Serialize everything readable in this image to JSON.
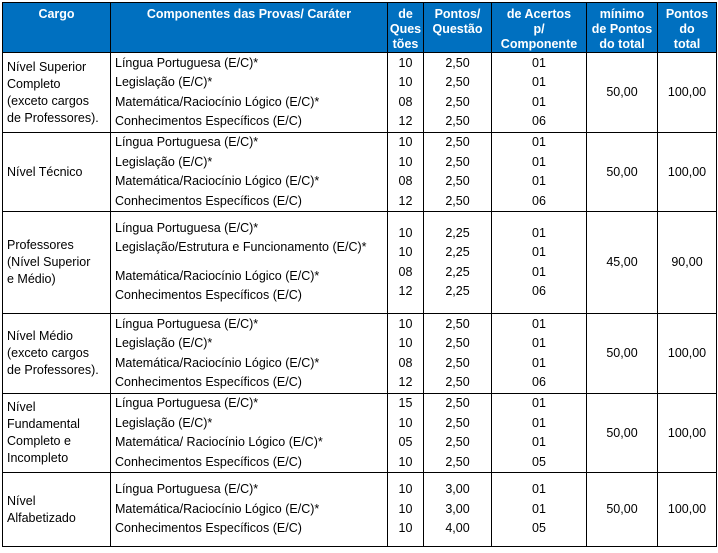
{
  "headers": {
    "cargo": "Cargo",
    "componentes": "Componentes das Provas/ Caráter",
    "questoes_lines": [
      "de",
      "Ques",
      "tões"
    ],
    "pontos_questao_lines": [
      "Pontos/",
      "Questão"
    ],
    "acertos_lines": [
      "de Acertos",
      "p/",
      "Componente"
    ],
    "minimo_lines": [
      "mínimo",
      "de Pontos",
      "do total"
    ],
    "pontos_total_lines": [
      "Pontos",
      "do",
      "total"
    ]
  },
  "groups": [
    {
      "cargo_lines": [
        "Nível Superior",
        "Completo",
        "(exceto cargos",
        "de Professores)."
      ],
      "componentes": [
        "Língua Portuguesa (E/C)*",
        "Legislação (E/C)*",
        "Matemática/Raciocínio Lógico (E/C)*",
        "Conhecimentos Específicos (E/C)"
      ],
      "questoes": [
        "10",
        "10",
        "08",
        "12"
      ],
      "pontos": [
        "2,50",
        "2,50",
        "2,50",
        "2,50"
      ],
      "acertos": [
        "01",
        "01",
        "01",
        "06"
      ],
      "minimo": "50,00",
      "total": "100,00"
    },
    {
      "cargo_lines": [
        "Nível Técnico"
      ],
      "componentes": [
        "Língua Portuguesa (E/C)*",
        "Legislação (E/C)*",
        "Matemática/Raciocínio Lógico (E/C)*",
        "Conhecimentos Específicos (E/C)"
      ],
      "questoes": [
        "10",
        "10",
        "08",
        "12"
      ],
      "pontos": [
        "2,50",
        "2,50",
        "2,50",
        "2,50"
      ],
      "acertos": [
        "01",
        "01",
        "01",
        "06"
      ],
      "minimo": "50,00",
      "total": "100,00"
    },
    {
      "cargo_lines": [
        "Professores",
        "(Nível Superior",
        "e Médio)"
      ],
      "componentes": [
        "Língua Portuguesa (E/C)*",
        "Legislação/Estrutura e Funcionamento (E/C)*",
        "Matemática/Raciocínio Lógico (E/C)*",
        "Conhecimentos Específicos (E/C)"
      ],
      "questoes": [
        "10",
        "10",
        "08",
        "12"
      ],
      "pontos": [
        "2,25",
        "2,25",
        "2,25",
        "2,25"
      ],
      "acertos": [
        "01",
        "01",
        "01",
        "06"
      ],
      "minimo": "45,00",
      "total": "90,00"
    },
    {
      "cargo_lines": [
        "Nível Médio",
        "(exceto cargos",
        "de Professores)."
      ],
      "componentes": [
        "Língua Portuguesa (E/C)*",
        "Legislação (E/C)*",
        "Matemática/Raciocínio Lógico (E/C)*",
        "Conhecimentos Específicos (E/C)"
      ],
      "questoes": [
        "10",
        "10",
        "08",
        "12"
      ],
      "pontos": [
        "2,50",
        "2,50",
        "2,50",
        "2,50"
      ],
      "acertos": [
        "01",
        "01",
        "01",
        "06"
      ],
      "minimo": "50,00",
      "total": "100,00"
    },
    {
      "cargo_lines": [
        "Nível",
        "Fundamental",
        "Completo e",
        "Incompleto"
      ],
      "componentes": [
        "Língua Portuguesa (E/C)*",
        "Legislação (E/C)*",
        "Matemática/ Raciocínio Lógico (E/C)*",
        "Conhecimentos Específicos (E/C)"
      ],
      "questoes": [
        "15",
        "10",
        "05",
        "10"
      ],
      "pontos": [
        "2,50",
        "2,50",
        "2,50",
        "2,50"
      ],
      "acertos": [
        "01",
        "01",
        "01",
        "05"
      ],
      "minimo": "50,00",
      "total": "100,00"
    },
    {
      "cargo_lines": [
        "Nível",
        "Alfabetizado"
      ],
      "componentes": [
        "Língua Portuguesa (E/C)*",
        "Matemática/Raciocínio Lógico (E/C)*",
        "Conhecimentos Específicos (E/C)"
      ],
      "questoes": [
        "10",
        "10",
        "10"
      ],
      "pontos": [
        "3,00",
        "3,00",
        "4,00"
      ],
      "acertos": [
        "01",
        "01",
        "05"
      ],
      "minimo": "50,00",
      "total": "100,00"
    }
  ]
}
